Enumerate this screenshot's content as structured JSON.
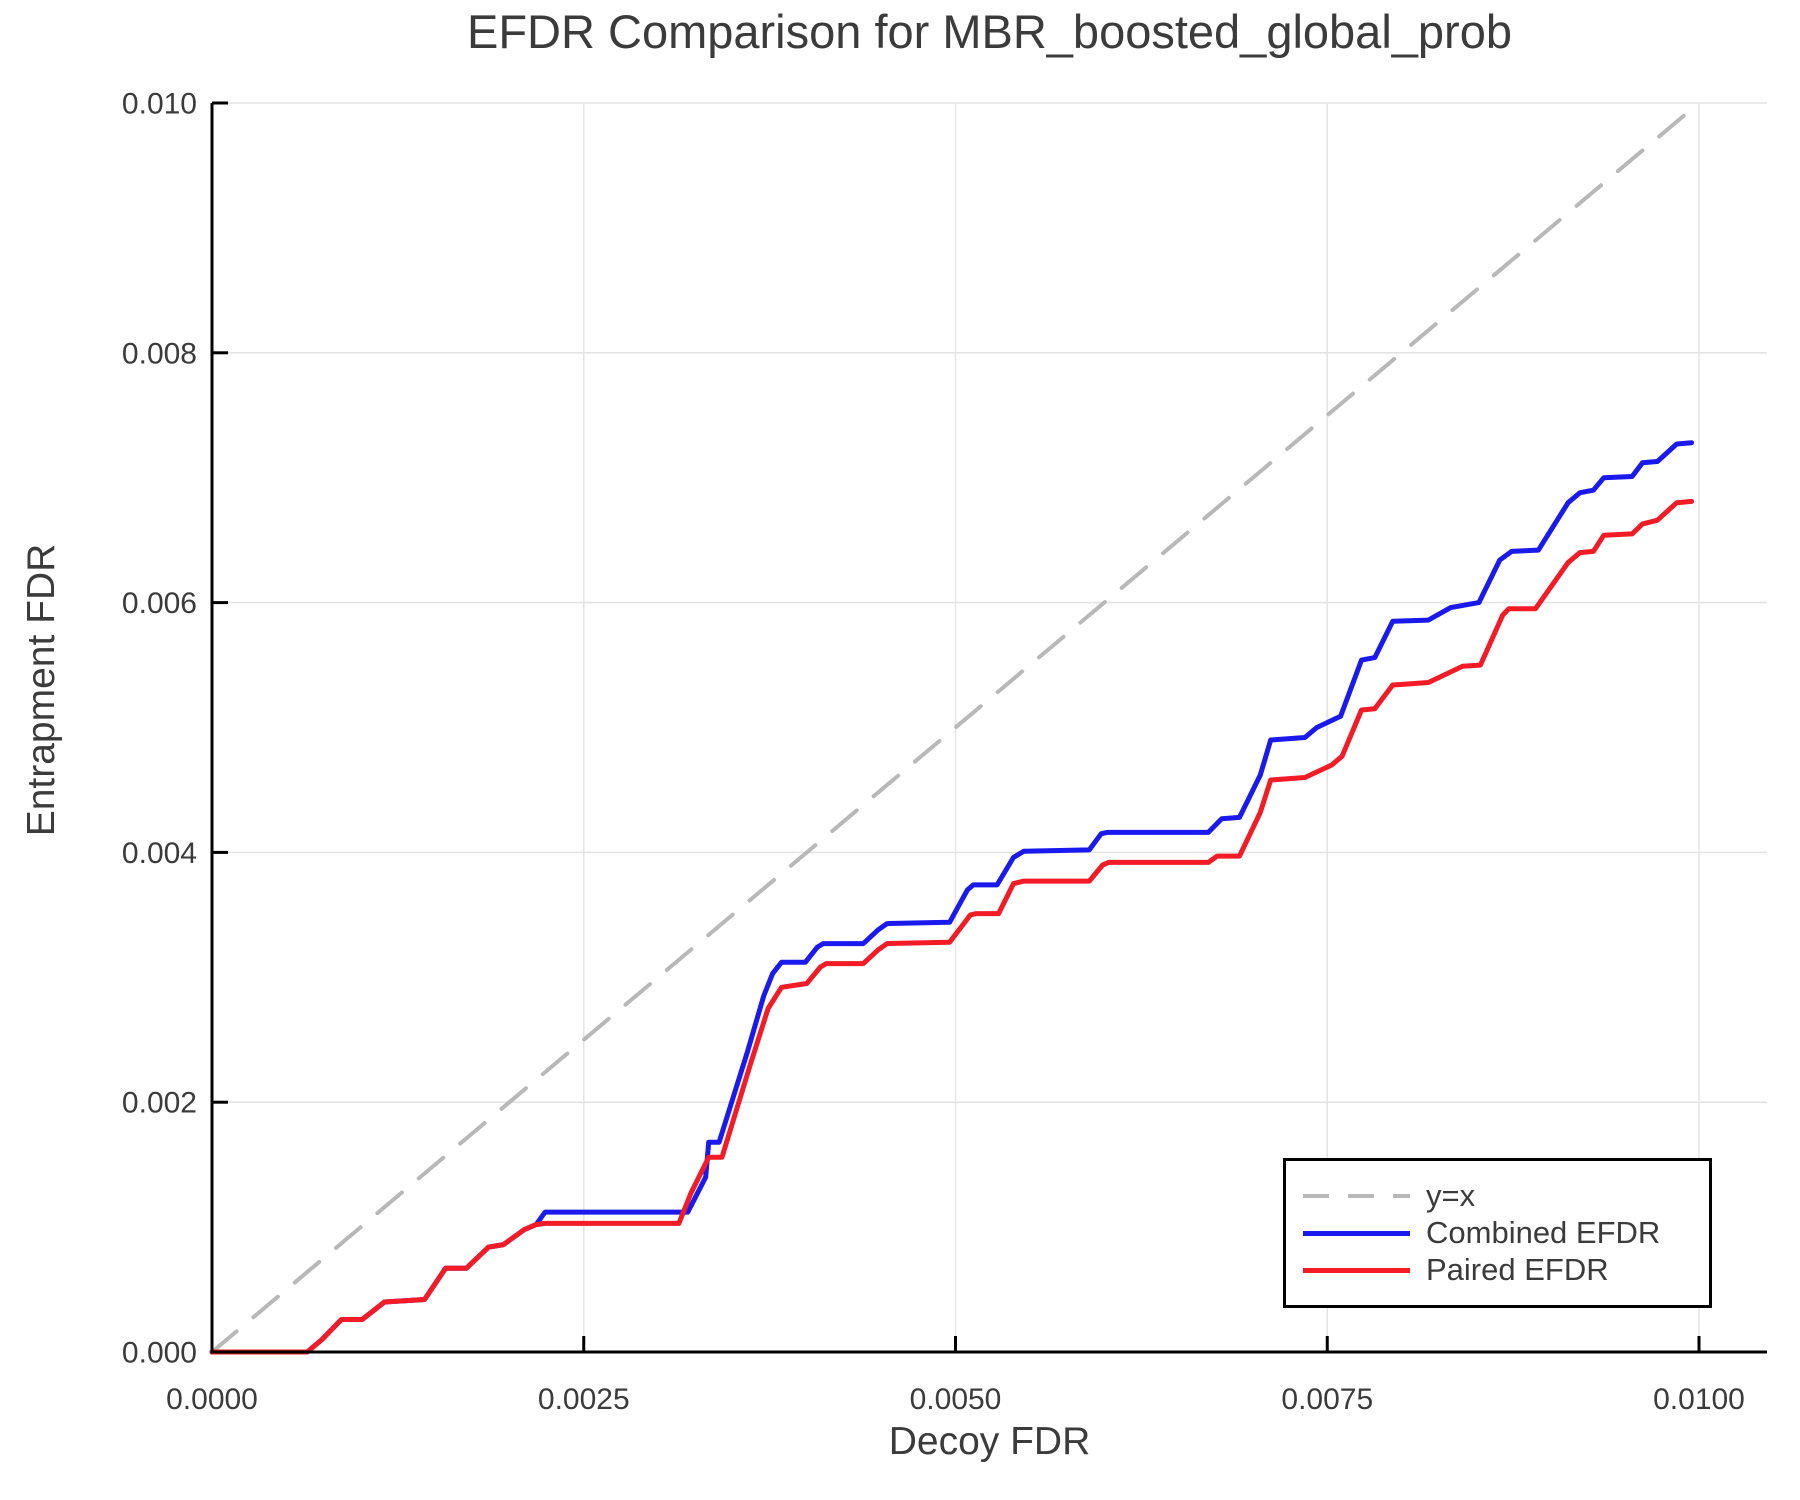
{
  "chart_data": {
    "type": "line",
    "title": "EFDR Comparison for MBR_boosted_global_prob",
    "xlabel": "Decoy FDR",
    "ylabel": "Entrapment FDR",
    "xlim": [
      0.0,
      0.01
    ],
    "ylim": [
      0.0,
      0.01
    ],
    "grid": true,
    "legend_position": "bottom-right",
    "x_ticks": [
      0.0,
      0.0025,
      0.005,
      0.0075,
      0.01
    ],
    "x_tick_labels": [
      "0.0000",
      "0.0025",
      "0.0050",
      "0.0075",
      "0.0100"
    ],
    "y_ticks": [
      0.0,
      0.002,
      0.004,
      0.006,
      0.008,
      0.01
    ],
    "y_tick_labels": [
      "0.000",
      "0.002",
      "0.004",
      "0.006",
      "0.008",
      "0.010"
    ],
    "colors": {
      "grid": "#E4E4E4",
      "text": "#3B3B3B",
      "axis": "#000000",
      "identity": "#B8B8B8",
      "combined": "#1A1AEF",
      "paired": "#F31B25"
    },
    "series": [
      {
        "name": "y=x",
        "color": "#B8B8B8",
        "dash": true,
        "width": 4,
        "points": [
          [
            0.0,
            0.0
          ],
          [
            0.01,
            0.01
          ]
        ]
      },
      {
        "name": "Combined EFDR",
        "color": "#1A1AEF",
        "dash": false,
        "width": 5,
        "points": [
          [
            0.0,
            0.0
          ],
          [
            0.00064,
            0.0
          ],
          [
            0.00074,
            0.0001
          ],
          [
            0.00087,
            0.00026
          ],
          [
            0.00101,
            0.00026
          ],
          [
            0.00116,
            0.0004
          ],
          [
            0.00143,
            0.00042
          ],
          [
            0.00157,
            0.00067
          ],
          [
            0.00171,
            0.00067
          ],
          [
            0.00186,
            0.00084
          ],
          [
            0.00196,
            0.00086
          ],
          [
            0.0021,
            0.00098
          ],
          [
            0.00218,
            0.00102
          ],
          [
            0.00224,
            0.00112
          ],
          [
            0.0032,
            0.00112
          ],
          [
            0.00332,
            0.0014
          ],
          [
            0.00334,
            0.00168
          ],
          [
            0.00341,
            0.00168
          ],
          [
            0.0036,
            0.0024
          ],
          [
            0.00371,
            0.00285
          ],
          [
            0.00377,
            0.00303
          ],
          [
            0.00383,
            0.00312
          ],
          [
            0.00399,
            0.00312
          ],
          [
            0.00407,
            0.00324
          ],
          [
            0.00411,
            0.00327
          ],
          [
            0.00438,
            0.00327
          ],
          [
            0.00448,
            0.00338
          ],
          [
            0.00454,
            0.00343
          ],
          [
            0.00496,
            0.00344
          ],
          [
            0.00508,
            0.0037
          ],
          [
            0.00512,
            0.00374
          ],
          [
            0.00528,
            0.00374
          ],
          [
            0.00539,
            0.00396
          ],
          [
            0.00546,
            0.00401
          ],
          [
            0.0059,
            0.00402
          ],
          [
            0.00598,
            0.00415
          ],
          [
            0.00602,
            0.00416
          ],
          [
            0.0067,
            0.00416
          ],
          [
            0.00679,
            0.00427
          ],
          [
            0.00691,
            0.00428
          ],
          [
            0.00705,
            0.00462
          ],
          [
            0.00712,
            0.0049
          ],
          [
            0.00735,
            0.00492
          ],
          [
            0.00743,
            0.005
          ],
          [
            0.00759,
            0.00509
          ],
          [
            0.00773,
            0.00554
          ],
          [
            0.00782,
            0.00556
          ],
          [
            0.00794,
            0.00585
          ],
          [
            0.00818,
            0.00586
          ],
          [
            0.00833,
            0.00596
          ],
          [
            0.00852,
            0.006
          ],
          [
            0.00866,
            0.00634
          ],
          [
            0.00874,
            0.00641
          ],
          [
            0.00892,
            0.00642
          ],
          [
            0.00912,
            0.0068
          ],
          [
            0.0092,
            0.00688
          ],
          [
            0.00929,
            0.0069
          ],
          [
            0.00936,
            0.007
          ],
          [
            0.00955,
            0.00701
          ],
          [
            0.00962,
            0.00712
          ],
          [
            0.00972,
            0.00713
          ],
          [
            0.00985,
            0.00727
          ],
          [
            0.00995,
            0.00728
          ]
        ]
      },
      {
        "name": "Paired EFDR",
        "color": "#F31B25",
        "dash": false,
        "width": 5,
        "points": [
          [
            0.0,
            0.0
          ],
          [
            0.00064,
            0.0
          ],
          [
            0.00074,
            0.0001
          ],
          [
            0.00087,
            0.00026
          ],
          [
            0.00101,
            0.00026
          ],
          [
            0.00116,
            0.0004
          ],
          [
            0.00143,
            0.00042
          ],
          [
            0.00157,
            0.00067
          ],
          [
            0.00171,
            0.00067
          ],
          [
            0.00186,
            0.00084
          ],
          [
            0.00196,
            0.00086
          ],
          [
            0.0021,
            0.00098
          ],
          [
            0.00218,
            0.00102
          ],
          [
            0.00224,
            0.00103
          ],
          [
            0.00314,
            0.00103
          ],
          [
            0.00322,
            0.00127
          ],
          [
            0.00334,
            0.00156
          ],
          [
            0.00343,
            0.00156
          ],
          [
            0.00362,
            0.0023
          ],
          [
            0.00374,
            0.00275
          ],
          [
            0.00383,
            0.00292
          ],
          [
            0.004,
            0.00295
          ],
          [
            0.00409,
            0.00308
          ],
          [
            0.00413,
            0.00311
          ],
          [
            0.00438,
            0.00311
          ],
          [
            0.00448,
            0.00322
          ],
          [
            0.00454,
            0.00327
          ],
          [
            0.00496,
            0.00328
          ],
          [
            0.0051,
            0.0035
          ],
          [
            0.00514,
            0.00351
          ],
          [
            0.00529,
            0.00351
          ],
          [
            0.00539,
            0.00375
          ],
          [
            0.00546,
            0.00377
          ],
          [
            0.0059,
            0.00377
          ],
          [
            0.00599,
            0.0039
          ],
          [
            0.00603,
            0.00392
          ],
          [
            0.0067,
            0.00392
          ],
          [
            0.00676,
            0.00397
          ],
          [
            0.00691,
            0.00397
          ],
          [
            0.00705,
            0.00432
          ],
          [
            0.00712,
            0.00458
          ],
          [
            0.00735,
            0.0046
          ],
          [
            0.00753,
            0.0047
          ],
          [
            0.0076,
            0.00477
          ],
          [
            0.00773,
            0.00514
          ],
          [
            0.00782,
            0.00515
          ],
          [
            0.00794,
            0.00534
          ],
          [
            0.00818,
            0.00536
          ],
          [
            0.00841,
            0.00549
          ],
          [
            0.00853,
            0.0055
          ],
          [
            0.00868,
            0.0059
          ],
          [
            0.00872,
            0.00595
          ],
          [
            0.0089,
            0.00595
          ],
          [
            0.00912,
            0.00632
          ],
          [
            0.0092,
            0.0064
          ],
          [
            0.00929,
            0.00641
          ],
          [
            0.00936,
            0.00654
          ],
          [
            0.00955,
            0.00655
          ],
          [
            0.00962,
            0.00663
          ],
          [
            0.00972,
            0.00666
          ],
          [
            0.00985,
            0.0068
          ],
          [
            0.00995,
            0.00681
          ]
        ]
      }
    ]
  }
}
